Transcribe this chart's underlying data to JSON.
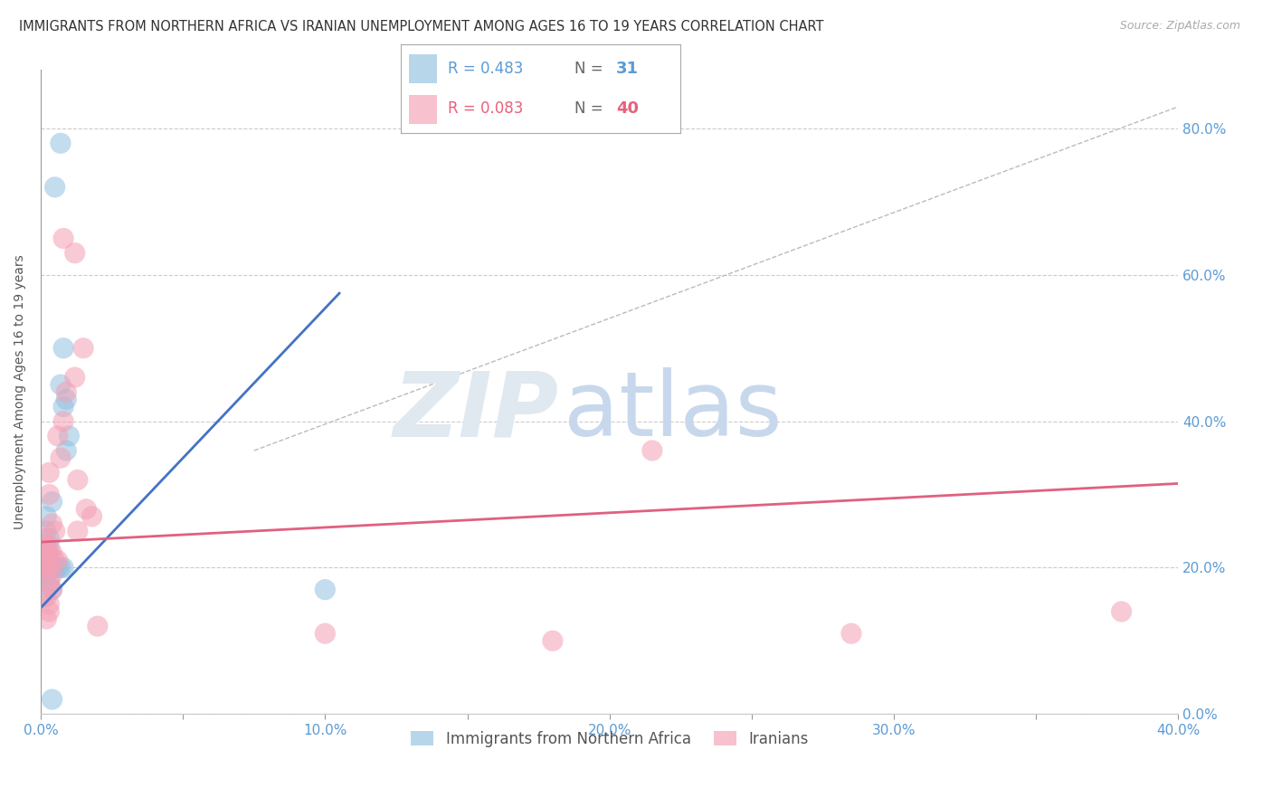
{
  "title": "IMMIGRANTS FROM NORTHERN AFRICA VS IRANIAN UNEMPLOYMENT AMONG AGES 16 TO 19 YEARS CORRELATION CHART",
  "source": "Source: ZipAtlas.com",
  "ylabel": "Unemployment Among Ages 16 to 19 years",
  "xlim": [
    0.0,
    0.4
  ],
  "ylim": [
    0.0,
    0.88
  ],
  "yticks": [
    0.0,
    0.2,
    0.4,
    0.6,
    0.8
  ],
  "xticks": [
    0.0,
    0.05,
    0.1,
    0.15,
    0.2,
    0.25,
    0.3,
    0.35,
    0.4
  ],
  "blue_R": "0.483",
  "blue_N": "31",
  "pink_R": "0.083",
  "pink_N": "40",
  "blue_label": "Immigrants from Northern Africa",
  "pink_label": "Iranians",
  "blue_color": "#92c0e0",
  "pink_color": "#f4a0b5",
  "blue_scatter": [
    [
      0.005,
      0.72
    ],
    [
      0.007,
      0.78
    ],
    [
      0.008,
      0.5
    ],
    [
      0.007,
      0.45
    ],
    [
      0.009,
      0.43
    ],
    [
      0.008,
      0.42
    ],
    [
      0.01,
      0.38
    ],
    [
      0.009,
      0.36
    ],
    [
      0.004,
      0.29
    ],
    [
      0.002,
      0.27
    ],
    [
      0.002,
      0.25
    ],
    [
      0.003,
      0.24
    ],
    [
      0.003,
      0.23
    ],
    [
      0.001,
      0.22
    ],
    [
      0.002,
      0.22
    ],
    [
      0.001,
      0.21
    ],
    [
      0.002,
      0.21
    ],
    [
      0.003,
      0.21
    ],
    [
      0.003,
      0.2
    ],
    [
      0.004,
      0.2
    ],
    [
      0.005,
      0.2
    ],
    [
      0.006,
      0.2
    ],
    [
      0.007,
      0.2
    ],
    [
      0.008,
      0.2
    ],
    [
      0.001,
      0.19
    ],
    [
      0.002,
      0.19
    ],
    [
      0.003,
      0.18
    ],
    [
      0.004,
      0.17
    ],
    [
      0.001,
      0.16
    ],
    [
      0.1,
      0.17
    ],
    [
      0.004,
      0.02
    ]
  ],
  "pink_scatter": [
    [
      0.008,
      0.65
    ],
    [
      0.012,
      0.63
    ],
    [
      0.015,
      0.5
    ],
    [
      0.012,
      0.46
    ],
    [
      0.009,
      0.44
    ],
    [
      0.008,
      0.4
    ],
    [
      0.006,
      0.38
    ],
    [
      0.007,
      0.35
    ],
    [
      0.003,
      0.33
    ],
    [
      0.013,
      0.32
    ],
    [
      0.003,
      0.3
    ],
    [
      0.016,
      0.28
    ],
    [
      0.018,
      0.27
    ],
    [
      0.004,
      0.26
    ],
    [
      0.005,
      0.25
    ],
    [
      0.013,
      0.25
    ],
    [
      0.001,
      0.24
    ],
    [
      0.001,
      0.23
    ],
    [
      0.002,
      0.23
    ],
    [
      0.002,
      0.22
    ],
    [
      0.003,
      0.22
    ],
    [
      0.004,
      0.22
    ],
    [
      0.005,
      0.21
    ],
    [
      0.006,
      0.21
    ],
    [
      0.001,
      0.2
    ],
    [
      0.002,
      0.2
    ],
    [
      0.003,
      0.2
    ],
    [
      0.004,
      0.19
    ],
    [
      0.003,
      0.18
    ],
    [
      0.004,
      0.17
    ],
    [
      0.002,
      0.16
    ],
    [
      0.003,
      0.15
    ],
    [
      0.003,
      0.14
    ],
    [
      0.002,
      0.13
    ],
    [
      0.02,
      0.12
    ],
    [
      0.1,
      0.11
    ],
    [
      0.18,
      0.1
    ],
    [
      0.215,
      0.36
    ],
    [
      0.285,
      0.11
    ],
    [
      0.38,
      0.14
    ]
  ],
  "blue_trend_x": [
    0.0,
    0.105
  ],
  "blue_trend_y": [
    0.145,
    0.575
  ],
  "pink_trend_x": [
    0.0,
    0.4
  ],
  "pink_trend_y": [
    0.235,
    0.315
  ],
  "ref_line_x": [
    0.075,
    0.4
  ],
  "ref_line_y": [
    0.36,
    0.83
  ],
  "watermark_zip": "ZIP",
  "watermark_atlas": "atlas",
  "watermark_color": "#d8e8f4",
  "background_color": "#ffffff",
  "title_fontsize": 10.5,
  "source_fontsize": 9,
  "ylabel_fontsize": 10,
  "axis_color": "#5b9bd5",
  "grid_color": "#cccccc",
  "legend_top_color": "#5b9bd5",
  "legend_bottom_color": "#e8607a"
}
